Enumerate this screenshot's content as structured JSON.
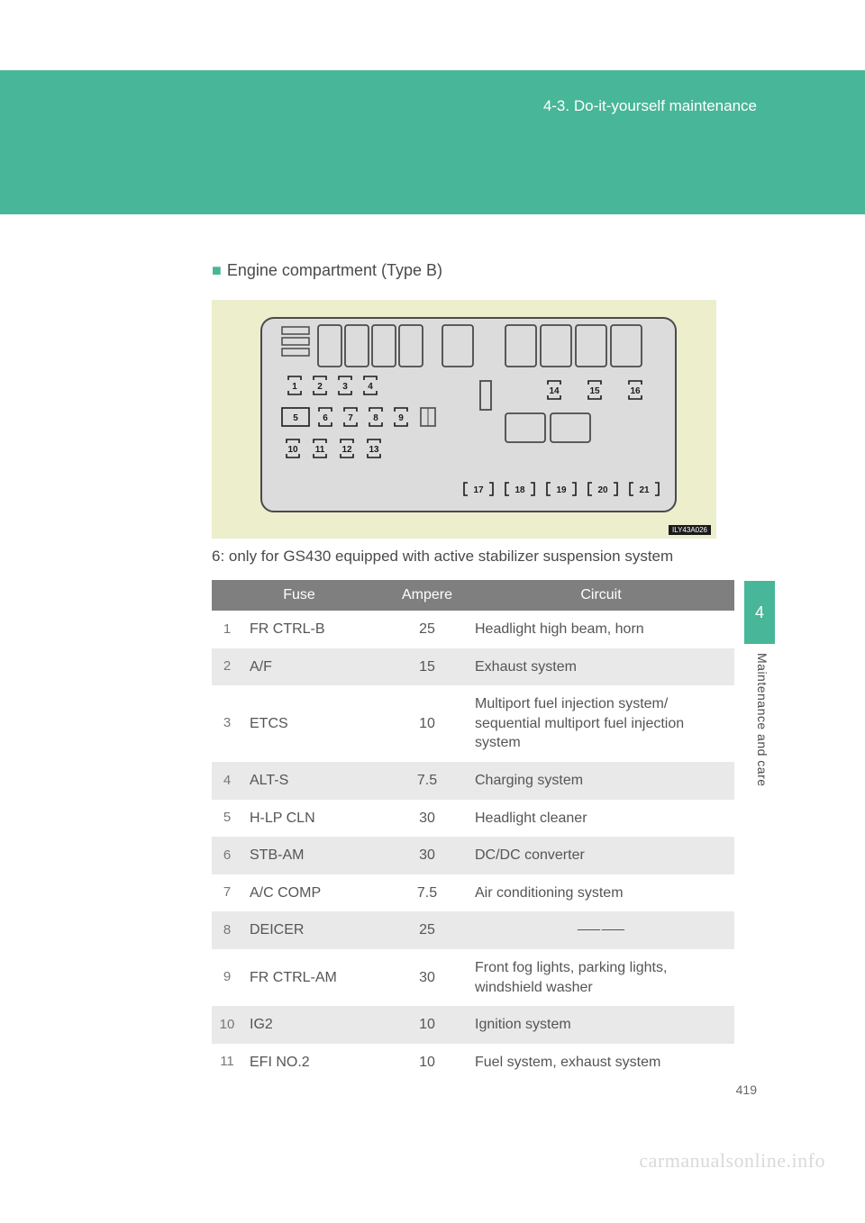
{
  "header": {
    "section_number": "4-3.",
    "section_title": "Do-it-yourself maintenance",
    "band_color": "#48b698"
  },
  "subsection": {
    "bullet_color": "#48b698",
    "title": "Engine compartment (Type B)"
  },
  "diagram": {
    "background_color": "#eceecc",
    "panel_fill": "#dcdcdc",
    "panel_stroke": "#4a4a4a",
    "code_label": "ILY43A026",
    "upper_left_fuses": [
      {
        "n": "1"
      },
      {
        "n": "2"
      },
      {
        "n": "3"
      },
      {
        "n": "4"
      }
    ],
    "lower_left_fuses": [
      {
        "n": "5"
      },
      {
        "n": "6"
      },
      {
        "n": "7"
      },
      {
        "n": "8"
      },
      {
        "n": "9"
      }
    ],
    "bottom_left_fuses": [
      {
        "n": "10"
      },
      {
        "n": "11"
      },
      {
        "n": "12"
      },
      {
        "n": "13"
      }
    ],
    "right_fuses": [
      {
        "n": "14"
      },
      {
        "n": "15"
      },
      {
        "n": "16"
      }
    ],
    "bottom_row_fuses": [
      {
        "n": "17"
      },
      {
        "n": "18"
      },
      {
        "n": "19"
      },
      {
        "n": "20"
      },
      {
        "n": "21"
      }
    ]
  },
  "note": "6: only for GS430 equipped with active stabilizer suspension system",
  "table": {
    "header_bg": "#7f7f7f",
    "header_fg": "#ffffff",
    "row_even_bg": "#e9e9e9",
    "row_odd_bg": "#ffffff",
    "columns": [
      "Fuse",
      "Ampere",
      "Circuit"
    ],
    "rows": [
      {
        "idx": "1",
        "name": "FR CTRL-B",
        "amp": "25",
        "circuit": "Headlight high beam, horn"
      },
      {
        "idx": "2",
        "name": "A/F",
        "amp": "15",
        "circuit": "Exhaust system"
      },
      {
        "idx": "3",
        "name": "ETCS",
        "amp": "10",
        "circuit": "Multiport fuel injection system/\nsequential multiport fuel injection system"
      },
      {
        "idx": "4",
        "name": "ALT-S",
        "amp": "7.5",
        "circuit": "Charging system"
      },
      {
        "idx": "5",
        "name": "H-LP CLN",
        "amp": "30",
        "circuit": "Headlight cleaner"
      },
      {
        "idx": "6",
        "name": "STB-AM",
        "amp": "30",
        "circuit": "DC/DC converter"
      },
      {
        "idx": "7",
        "name": "A/C COMP",
        "amp": "7.5",
        "circuit": "Air conditioning system"
      },
      {
        "idx": "8",
        "name": "DEICER",
        "amp": "25",
        "circuit": "⸺⸺",
        "center": true
      },
      {
        "idx": "9",
        "name": "FR CTRL-AM",
        "amp": "30",
        "circuit": "Front fog lights, parking lights, windshield washer"
      },
      {
        "idx": "10",
        "name": "IG2",
        "amp": "10",
        "circuit": "Ignition system"
      },
      {
        "idx": "11",
        "name": "EFI NO.2",
        "amp": "10",
        "circuit": "Fuel system, exhaust system"
      }
    ]
  },
  "side": {
    "tab_number": "4",
    "tab_bg": "#48b698",
    "label": "Maintenance and care"
  },
  "page_number": "419",
  "watermark": "carmanualsonline.info"
}
